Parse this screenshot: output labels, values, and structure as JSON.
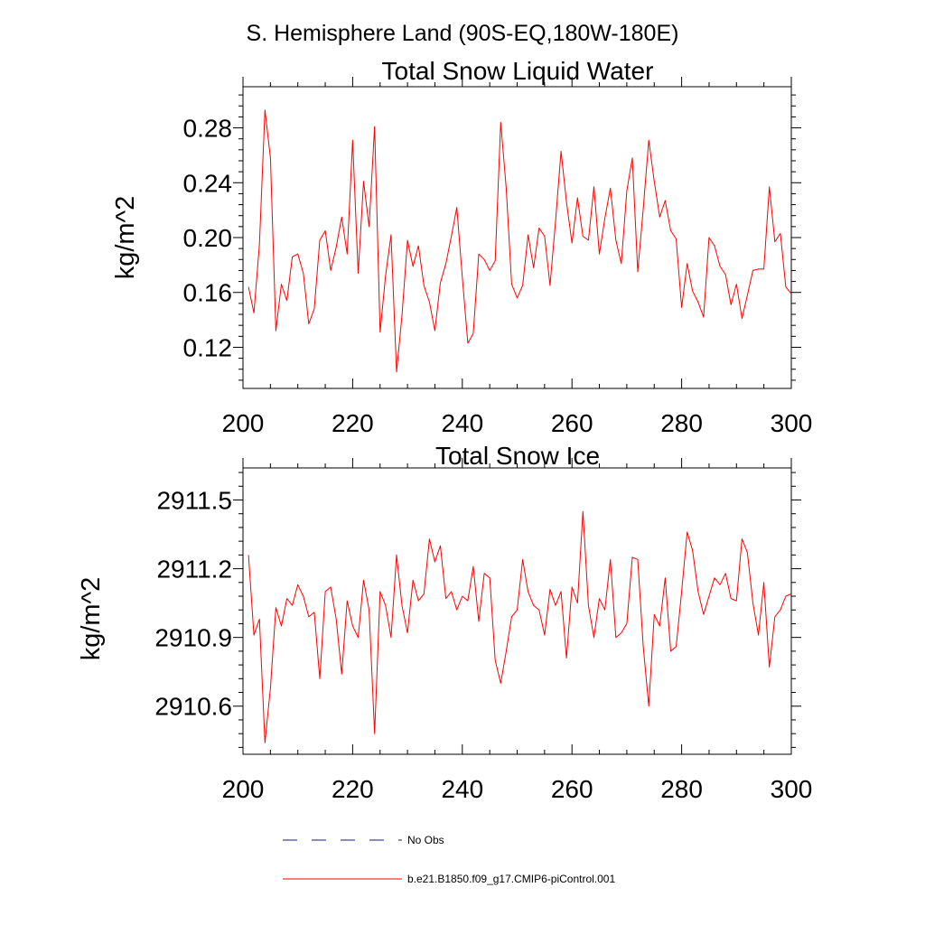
{
  "header": {
    "region": "S. Hemisphere Land (90S-EQ,180W-180E)"
  },
  "legend": {
    "entries": [
      {
        "label": "No Obs",
        "color": "#1a1a6e",
        "style": "dashed"
      },
      {
        "label": "b.e21.B1850.f09_g17.CMIP6-piControl.001",
        "color": "#ff0000",
        "style": "solid"
      }
    ]
  },
  "chart_data": [
    {
      "type": "line",
      "title": "Total Snow Liquid Water",
      "xlabel": "",
      "ylabel": "kg/m^2",
      "xlim": [
        200,
        300
      ],
      "ylim": [
        0.09,
        0.31
      ],
      "xticks": [
        200,
        220,
        240,
        260,
        280,
        300
      ],
      "xtick_labels": [
        "200",
        "220",
        "240",
        "260",
        "280",
        "300"
      ],
      "yticks": [
        0.12,
        0.16,
        0.2,
        0.24,
        0.28
      ],
      "ytick_labels": [
        "0.12",
        "0.16",
        "0.20",
        "0.24",
        "0.28"
      ],
      "grid": false,
      "series": [
        {
          "name": "b.e21.B1850.f09_g17.CMIP6-piControl.001",
          "color": "#ff0000",
          "x": [
            201,
            202,
            203,
            204,
            205,
            206,
            207,
            208,
            209,
            210,
            211,
            212,
            213,
            214,
            215,
            216,
            217,
            218,
            219,
            220,
            221,
            222,
            223,
            224,
            225,
            226,
            227,
            228,
            229,
            230,
            231,
            232,
            233,
            234,
            235,
            236,
            237,
            238,
            239,
            240,
            241,
            242,
            243,
            244,
            245,
            246,
            247,
            248,
            249,
            250,
            251,
            252,
            253,
            254,
            255,
            256,
            257,
            258,
            259,
            260,
            261,
            262,
            263,
            264,
            265,
            266,
            267,
            268,
            269,
            270,
            271,
            272,
            273,
            274,
            275,
            276,
            277,
            278,
            279,
            280,
            281,
            282,
            283,
            284,
            285,
            286,
            287,
            288,
            289,
            290,
            291,
            292,
            293,
            294,
            295,
            296,
            297,
            298,
            299,
            300
          ],
          "values": [
            0.164,
            0.145,
            0.195,
            0.293,
            0.258,
            0.132,
            0.166,
            0.154,
            0.186,
            0.188,
            0.174,
            0.137,
            0.148,
            0.198,
            0.205,
            0.176,
            0.193,
            0.215,
            0.188,
            0.271,
            0.174,
            0.241,
            0.208,
            0.281,
            0.131,
            0.172,
            0.202,
            0.102,
            0.143,
            0.198,
            0.179,
            0.194,
            0.165,
            0.153,
            0.132,
            0.167,
            0.181,
            0.201,
            0.222,
            0.171,
            0.123,
            0.13,
            0.188,
            0.184,
            0.176,
            0.183,
            0.284,
            0.236,
            0.166,
            0.156,
            0.165,
            0.202,
            0.178,
            0.207,
            0.201,
            0.165,
            0.212,
            0.263,
            0.226,
            0.196,
            0.229,
            0.201,
            0.198,
            0.237,
            0.188,
            0.214,
            0.236,
            0.198,
            0.181,
            0.234,
            0.258,
            0.175,
            0.221,
            0.271,
            0.241,
            0.215,
            0.227,
            0.205,
            0.199,
            0.149,
            0.181,
            0.161,
            0.153,
            0.142,
            0.2,
            0.194,
            0.179,
            0.173,
            0.151,
            0.166,
            0.141,
            0.158,
            0.176,
            0.177,
            0.177,
            0.237,
            0.197,
            0.203,
            0.164,
            0.159
          ]
        }
      ]
    },
    {
      "type": "line",
      "title": "Total Snow Ice",
      "xlabel": "",
      "ylabel": "kg/m^2",
      "xlim": [
        200,
        300
      ],
      "ylim": [
        2910.39,
        2911.64
      ],
      "xticks": [
        200,
        220,
        240,
        260,
        280,
        300
      ],
      "xtick_labels": [
        "200",
        "220",
        "240",
        "260",
        "280",
        "300"
      ],
      "yticks": [
        2910.6,
        2910.9,
        2911.2,
        2911.5
      ],
      "ytick_labels": [
        "2910.6",
        "2910.9",
        "2911.2",
        "2911.5"
      ],
      "grid": false,
      "series": [
        {
          "name": "b.e21.B1850.f09_g17.CMIP6-piControl.001",
          "color": "#ff0000",
          "x": [
            201,
            202,
            203,
            204,
            205,
            206,
            207,
            208,
            209,
            210,
            211,
            212,
            213,
            214,
            215,
            216,
            217,
            218,
            219,
            220,
            221,
            222,
            223,
            224,
            225,
            226,
            227,
            228,
            229,
            230,
            231,
            232,
            233,
            234,
            235,
            236,
            237,
            238,
            239,
            240,
            241,
            242,
            243,
            244,
            245,
            246,
            247,
            248,
            249,
            250,
            251,
            252,
            253,
            254,
            255,
            256,
            257,
            258,
            259,
            260,
            261,
            262,
            263,
            264,
            265,
            266,
            267,
            268,
            269,
            270,
            271,
            272,
            273,
            274,
            275,
            276,
            277,
            278,
            279,
            280,
            281,
            282,
            283,
            284,
            285,
            286,
            287,
            288,
            289,
            290,
            291,
            292,
            293,
            294,
            295,
            296,
            297,
            298,
            299,
            300
          ],
          "values": [
            2911.26,
            2910.91,
            2910.98,
            2910.44,
            2910.68,
            2911.03,
            2910.95,
            2911.07,
            2911.04,
            2911.13,
            2911.08,
            2910.99,
            2911.01,
            2910.72,
            2911.1,
            2911.12,
            2910.98,
            2910.74,
            2911.06,
            2910.95,
            2910.9,
            2911.15,
            2911.02,
            2910.48,
            2911.1,
            2911.04,
            2910.9,
            2911.26,
            2911.04,
            2910.92,
            2911.15,
            2911.06,
            2911.09,
            2911.33,
            2911.23,
            2911.3,
            2911.07,
            2911.1,
            2911.02,
            2911.08,
            2911.06,
            2911.21,
            2910.97,
            2911.18,
            2911.16,
            2910.8,
            2910.7,
            2910.84,
            2910.99,
            2911.02,
            2911.24,
            2911.1,
            2911.04,
            2911.02,
            2910.91,
            2911.11,
            2911.04,
            2911.1,
            2910.81,
            2911.12,
            2911.05,
            2911.45,
            2911.04,
            2910.9,
            2911.07,
            2911.02,
            2911.24,
            2910.9,
            2910.92,
            2910.96,
            2911.25,
            2911.24,
            2910.86,
            2910.6,
            2911.0,
            2910.95,
            2911.16,
            2910.84,
            2910.86,
            2911.1,
            2911.36,
            2911.28,
            2911.1,
            2911.0,
            2911.08,
            2911.16,
            2911.13,
            2911.18,
            2911.07,
            2911.06,
            2911.33,
            2911.27,
            2911.05,
            2910.91,
            2911.14,
            2910.77,
            2910.99,
            2911.02,
            2911.08,
            2911.09
          ]
        }
      ]
    }
  ]
}
